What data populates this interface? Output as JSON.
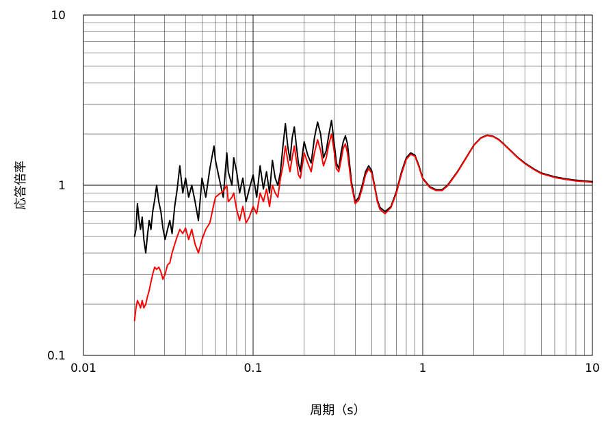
{
  "chart_data": {
    "type": "line",
    "title": "",
    "xlabel": "周期（s）",
    "ylabel": "応答倍率",
    "x_scale": "log",
    "y_scale": "log",
    "xlim": [
      0.01,
      10
    ],
    "ylim": [
      0.1,
      10
    ],
    "x_ticks": [
      {
        "value": 0.01,
        "label": "0.01"
      },
      {
        "value": 0.1,
        "label": "0.1"
      },
      {
        "value": 1,
        "label": "1"
      },
      {
        "value": 10,
        "label": "10"
      }
    ],
    "y_ticks": [
      {
        "value": 0.1,
        "label": "0.1"
      },
      {
        "value": 1,
        "label": "1"
      },
      {
        "value": 10,
        "label": "10"
      }
    ],
    "grid": true,
    "legend": "none",
    "series": [
      {
        "color": "#000000",
        "x": [
          0.02,
          0.0204,
          0.0208,
          0.0213,
          0.0217,
          0.0222,
          0.0227,
          0.0233,
          0.0238,
          0.0244,
          0.025,
          0.0256,
          0.0263,
          0.027,
          0.0278,
          0.0286,
          0.0294,
          0.0303,
          0.0313,
          0.0323,
          0.0333,
          0.0345,
          0.0357,
          0.037,
          0.0385,
          0.04,
          0.0417,
          0.0435,
          0.0455,
          0.0476,
          0.05,
          0.0526,
          0.0556,
          0.0588,
          0.06,
          0.0625,
          0.0667,
          0.07,
          0.0714,
          0.075,
          0.0769,
          0.08,
          0.0833,
          0.087,
          0.0909,
          0.095,
          0.1,
          0.105,
          0.11,
          0.115,
          0.12,
          0.125,
          0.13,
          0.135,
          0.14,
          0.145,
          0.15,
          0.155,
          0.16,
          0.165,
          0.17,
          0.175,
          0.18,
          0.185,
          0.19,
          0.195,
          0.2,
          0.21,
          0.22,
          0.23,
          0.24,
          0.25,
          0.26,
          0.27,
          0.28,
          0.29,
          0.3,
          0.31,
          0.32,
          0.33,
          0.34,
          0.35,
          0.36,
          0.38,
          0.4,
          0.42,
          0.44,
          0.46,
          0.48,
          0.5,
          0.52,
          0.54,
          0.56,
          0.6,
          0.65,
          0.7,
          0.75,
          0.8,
          0.85,
          0.9,
          0.95,
          1.0,
          1.1,
          1.2,
          1.3,
          1.4,
          1.6,
          1.8,
          2.0,
          2.2,
          2.4,
          2.6,
          2.8,
          3.0,
          3.3,
          3.6,
          4.0,
          4.5,
          5.0,
          6.0,
          7.0,
          8.0,
          9.0,
          10.0
        ],
        "y": [
          0.5,
          0.55,
          0.78,
          0.62,
          0.55,
          0.65,
          0.48,
          0.4,
          0.5,
          0.62,
          0.55,
          0.7,
          0.82,
          1.0,
          0.8,
          0.7,
          0.56,
          0.48,
          0.55,
          0.62,
          0.52,
          0.75,
          0.95,
          1.3,
          0.9,
          1.1,
          0.85,
          1.0,
          0.8,
          0.62,
          1.1,
          0.85,
          1.25,
          1.7,
          1.4,
          1.15,
          0.85,
          1.55,
          1.2,
          1.0,
          1.45,
          1.2,
          0.9,
          1.1,
          0.8,
          0.95,
          1.15,
          0.85,
          1.3,
          0.95,
          1.2,
          0.9,
          1.4,
          1.1,
          1.0,
          1.2,
          1.7,
          2.3,
          1.7,
          1.4,
          1.9,
          2.2,
          1.7,
          1.35,
          1.2,
          1.5,
          1.8,
          1.5,
          1.35,
          1.9,
          2.35,
          2.0,
          1.45,
          1.6,
          2.0,
          2.4,
          1.8,
          1.35,
          1.25,
          1.55,
          1.8,
          1.95,
          1.75,
          1.05,
          0.8,
          0.85,
          1.0,
          1.2,
          1.3,
          1.22,
          1.0,
          0.82,
          0.74,
          0.7,
          0.75,
          0.92,
          1.2,
          1.45,
          1.55,
          1.5,
          1.3,
          1.1,
          0.98,
          0.94,
          0.94,
          1.0,
          1.2,
          1.45,
          1.72,
          1.9,
          1.97,
          1.94,
          1.86,
          1.75,
          1.6,
          1.47,
          1.35,
          1.25,
          1.18,
          1.12,
          1.09,
          1.07,
          1.06,
          1.05
        ]
      },
      {
        "color": "#ff0000",
        "x": [
          0.02,
          0.0204,
          0.0208,
          0.0213,
          0.0217,
          0.0222,
          0.0227,
          0.0233,
          0.0238,
          0.0244,
          0.025,
          0.0256,
          0.0263,
          0.027,
          0.0278,
          0.0286,
          0.0294,
          0.0303,
          0.0313,
          0.0323,
          0.0333,
          0.0345,
          0.0357,
          0.037,
          0.0385,
          0.04,
          0.0417,
          0.0435,
          0.0455,
          0.0476,
          0.05,
          0.0526,
          0.0556,
          0.0588,
          0.06,
          0.0625,
          0.0667,
          0.07,
          0.0714,
          0.075,
          0.0769,
          0.08,
          0.0833,
          0.087,
          0.0909,
          0.095,
          0.1,
          0.105,
          0.11,
          0.115,
          0.12,
          0.125,
          0.13,
          0.135,
          0.14,
          0.145,
          0.15,
          0.155,
          0.16,
          0.165,
          0.17,
          0.175,
          0.18,
          0.185,
          0.19,
          0.195,
          0.2,
          0.21,
          0.22,
          0.23,
          0.24,
          0.25,
          0.26,
          0.27,
          0.28,
          0.29,
          0.3,
          0.31,
          0.32,
          0.33,
          0.34,
          0.35,
          0.36,
          0.38,
          0.4,
          0.42,
          0.44,
          0.46,
          0.48,
          0.5,
          0.52,
          0.54,
          0.56,
          0.6,
          0.65,
          0.7,
          0.75,
          0.8,
          0.85,
          0.9,
          0.95,
          1.0,
          1.1,
          1.2,
          1.3,
          1.4,
          1.6,
          1.8,
          2.0,
          2.2,
          2.4,
          2.6,
          2.8,
          3.0,
          3.3,
          3.6,
          4.0,
          4.5,
          5.0,
          6.0,
          7.0,
          8.0,
          9.0,
          10.0
        ],
        "y": [
          0.16,
          0.19,
          0.21,
          0.2,
          0.19,
          0.21,
          0.19,
          0.2,
          0.22,
          0.24,
          0.27,
          0.3,
          0.33,
          0.32,
          0.33,
          0.31,
          0.28,
          0.3,
          0.34,
          0.35,
          0.4,
          0.45,
          0.5,
          0.55,
          0.52,
          0.56,
          0.48,
          0.55,
          0.45,
          0.4,
          0.48,
          0.55,
          0.6,
          0.78,
          0.85,
          0.88,
          0.92,
          1.0,
          0.8,
          0.85,
          0.9,
          0.72,
          0.62,
          0.75,
          0.6,
          0.65,
          0.75,
          0.68,
          0.9,
          0.8,
          0.95,
          0.75,
          1.0,
          0.9,
          0.85,
          1.1,
          1.3,
          1.7,
          1.4,
          1.2,
          1.45,
          1.7,
          1.4,
          1.15,
          1.1,
          1.3,
          1.55,
          1.35,
          1.2,
          1.55,
          1.85,
          1.6,
          1.3,
          1.45,
          1.75,
          2.0,
          1.6,
          1.25,
          1.2,
          1.4,
          1.65,
          1.75,
          1.55,
          1.0,
          0.78,
          0.82,
          0.96,
          1.15,
          1.25,
          1.18,
          0.98,
          0.8,
          0.72,
          0.68,
          0.74,
          0.9,
          1.17,
          1.42,
          1.52,
          1.48,
          1.28,
          1.09,
          0.97,
          0.93,
          0.93,
          0.99,
          1.19,
          1.44,
          1.71,
          1.89,
          1.96,
          1.93,
          1.85,
          1.74,
          1.59,
          1.46,
          1.34,
          1.24,
          1.17,
          1.11,
          1.08,
          1.06,
          1.05,
          1.04
        ]
      }
    ]
  }
}
